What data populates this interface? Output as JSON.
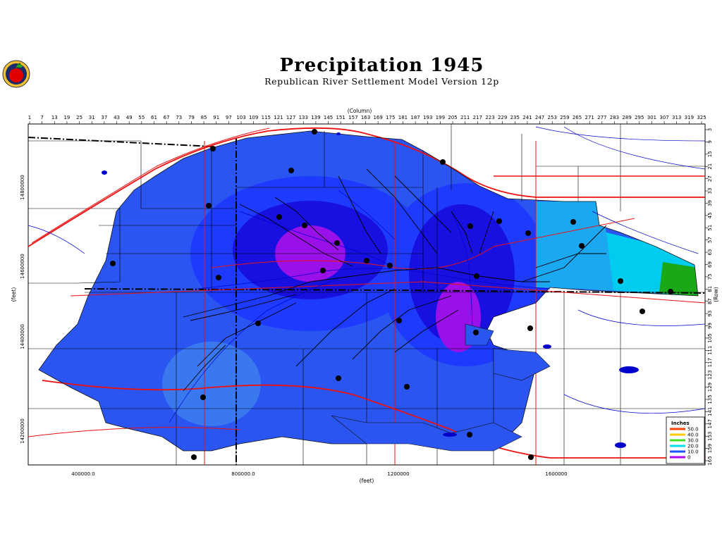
{
  "header": {
    "title": "Precipitation 1945",
    "subtitle": "Republican River Settlement Model Version 12p"
  },
  "axes": {
    "column_label": "(Column)",
    "row_label": "(Row)",
    "x_feet_label": "(feet)",
    "y_feet_label": "(feet)",
    "column_ticks": [
      "1",
      "7",
      "13",
      "19",
      "25",
      "31",
      "37",
      "43",
      "49",
      "55",
      "61",
      "67",
      "73",
      "79",
      "85",
      "91",
      "97",
      "103",
      "109",
      "115",
      "121",
      "127",
      "133",
      "139",
      "145",
      "151",
      "157",
      "163",
      "169",
      "175",
      "181",
      "187",
      "193",
      "199",
      "205",
      "211",
      "217",
      "223",
      "229",
      "235",
      "241",
      "247",
      "253",
      "259",
      "265",
      "271",
      "277",
      "283",
      "289",
      "295",
      "301",
      "307",
      "313",
      "319",
      "325"
    ],
    "row_ticks": [
      "3",
      "9",
      "15",
      "21",
      "27",
      "33",
      "39",
      "45",
      "51",
      "57",
      "63",
      "69",
      "75",
      "81",
      "87",
      "93",
      "99",
      "105",
      "111",
      "117",
      "123",
      "129",
      "135",
      "141",
      "147",
      "153",
      "159",
      "165"
    ],
    "x_feet_ticks": [
      "400000.0",
      "800000.0",
      "1200000",
      "1600000"
    ],
    "y_feet_ticks": [
      "14800000",
      "14600000",
      "14400000",
      "14200000"
    ]
  },
  "legend": {
    "title": "Inches",
    "items": [
      {
        "label": "50.0",
        "color": "#ff4000"
      },
      {
        "label": "40.0",
        "color": "#ffcc00"
      },
      {
        "label": "30.0",
        "color": "#44dd22"
      },
      {
        "label": "20.0",
        "color": "#00e0e8"
      },
      {
        "label": "10.0",
        "color": "#2050ff"
      },
      {
        "label": "0",
        "color": "#b000ff"
      }
    ]
  },
  "colors": {
    "contour_base": "#2a55f0",
    "contour_mid": "#1e3aff",
    "contour_low": "#1810e0",
    "contour_min": "#9a10e8",
    "contour_high": "#00ccf0",
    "contour_top": "#18a818",
    "river": "#0000cc",
    "road": "#ee1010",
    "boundary": "#000000"
  },
  "icons": {
    "logo": "apple-logo-icon",
    "station": "station-dot-icon"
  }
}
